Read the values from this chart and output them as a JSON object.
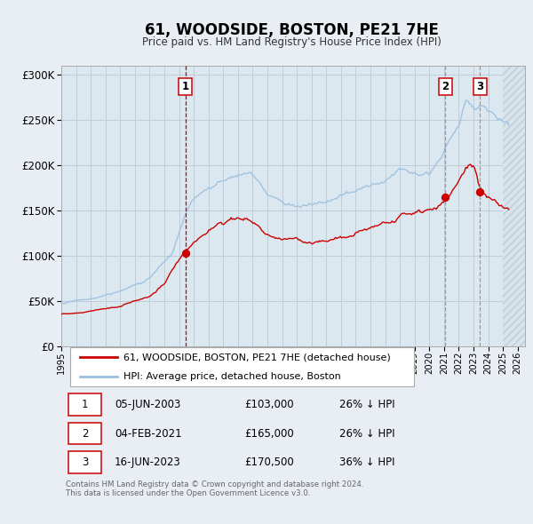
{
  "title": "61, WOODSIDE, BOSTON, PE21 7HE",
  "subtitle": "Price paid vs. HM Land Registry's House Price Index (HPI)",
  "ylim": [
    0,
    310000
  ],
  "yticks": [
    0,
    50000,
    100000,
    150000,
    200000,
    250000,
    300000
  ],
  "ytick_labels": [
    "£0",
    "£50K",
    "£100K",
    "£150K",
    "£200K",
    "£250K",
    "£300K"
  ],
  "xlim_start": 1995.0,
  "xlim_end": 2026.5,
  "xticks": [
    1995,
    1996,
    1997,
    1998,
    1999,
    2000,
    2001,
    2002,
    2003,
    2004,
    2005,
    2006,
    2007,
    2008,
    2009,
    2010,
    2011,
    2012,
    2013,
    2014,
    2015,
    2016,
    2017,
    2018,
    2019,
    2020,
    2021,
    2022,
    2023,
    2024,
    2025,
    2026
  ],
  "hpi_color": "#9bbfe0",
  "price_color": "#cc0000",
  "sale1_vline_color": "#cc0000",
  "sale2_vline_color": "#aaaaaa",
  "sale3_vline_color": "#aaaaaa",
  "background_color": "#e8eef4",
  "plot_bg_color": "#dce8f0",
  "grid_color": "#c0cdd8",
  "hatch_color": "#c8d4dc",
  "sale_points": [
    {
      "date_year": 2003.42,
      "price": 103000,
      "label": "1",
      "vline_color": "#cc0000",
      "vline_style": "--"
    },
    {
      "date_year": 2021.09,
      "price": 165000,
      "label": "2",
      "vline_color": "#999999",
      "vline_style": "--"
    },
    {
      "date_year": 2023.45,
      "price": 170500,
      "label": "3",
      "vline_color": "#999999",
      "vline_style": "--"
    }
  ],
  "legend_entries": [
    {
      "label": "61, WOODSIDE, BOSTON, PE21 7HE (detached house)",
      "color": "#cc0000"
    },
    {
      "label": "HPI: Average price, detached house, Boston",
      "color": "#9bbfe0"
    }
  ],
  "table_rows": [
    {
      "num": "1",
      "date": "05-JUN-2003",
      "price": "£103,000",
      "pct": "26% ↓ HPI"
    },
    {
      "num": "2",
      "date": "04-FEB-2021",
      "price": "£165,000",
      "pct": "26% ↓ HPI"
    },
    {
      "num": "3",
      "date": "16-JUN-2023",
      "price": "£170,500",
      "pct": "36% ↓ HPI"
    }
  ],
  "footnote": "Contains HM Land Registry data © Crown copyright and database right 2024.\nThis data is licensed under the Open Government Licence v3.0."
}
